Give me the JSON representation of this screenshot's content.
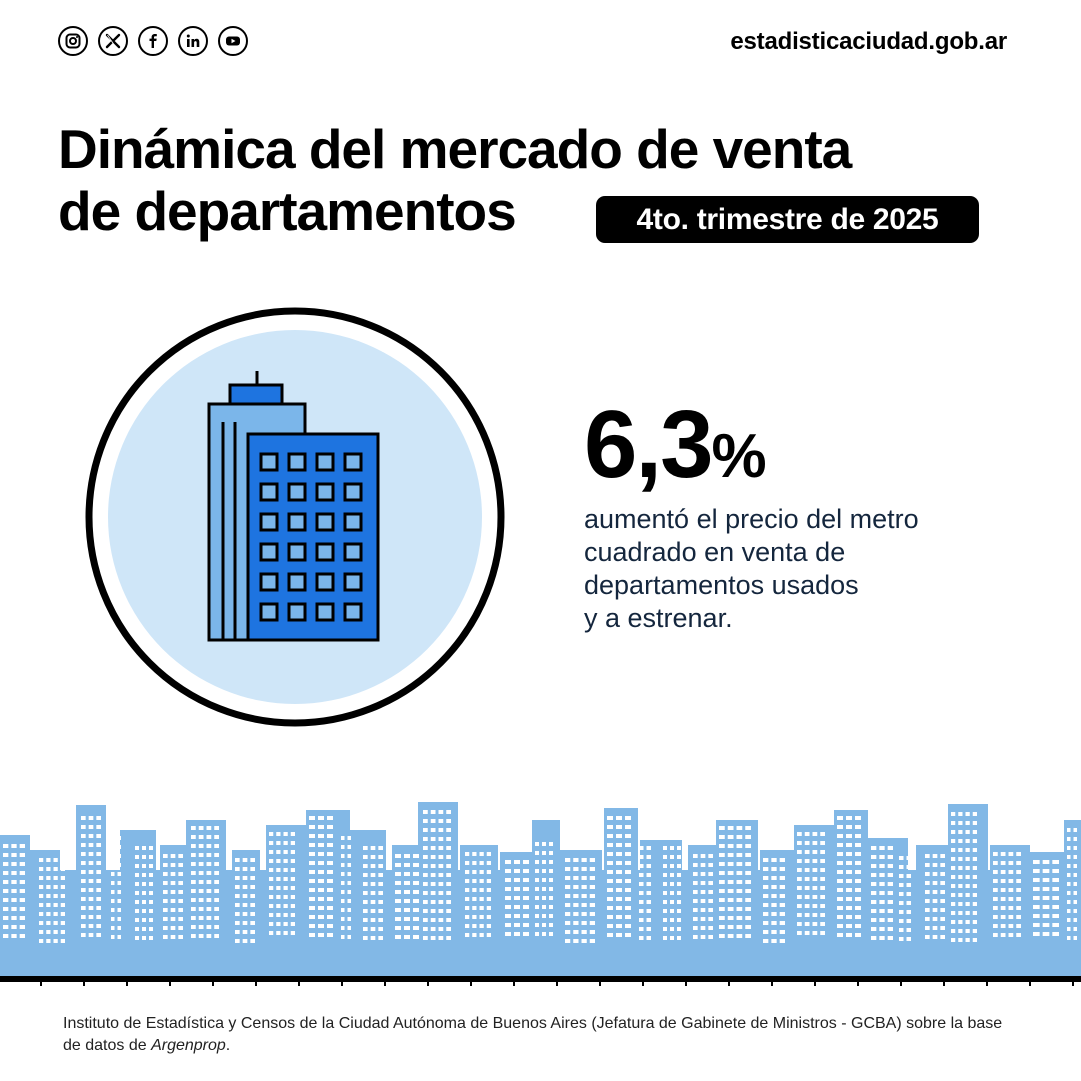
{
  "header": {
    "social_icons": [
      {
        "name": "instagram-icon"
      },
      {
        "name": "x-twitter-icon"
      },
      {
        "name": "facebook-icon"
      },
      {
        "name": "linkedin-icon"
      },
      {
        "name": "youtube-icon"
      }
    ],
    "site_url": "estadisticaciudad.gob.ar"
  },
  "title": {
    "line1": "Dinámica del mercado de venta",
    "line2": "de departamentos"
  },
  "period_badge": "4to. trimestre de 2025",
  "stat": {
    "number": "6,3",
    "unit": "%",
    "description_lines": [
      "aumentó el precio del metro",
      "cuadrado en venta de",
      "departamentos usados",
      "y a estrenar."
    ]
  },
  "illustration": {
    "icon": "office-building-icon",
    "circle_bg_color": "#cfe6f8",
    "building_blue": "#1e74e0",
    "building_light_blue": "#7bb6ea",
    "skyline_color": "#82b8e6"
  },
  "source": {
    "text_before": "Instituto de Estadística y Censos de la Ciudad Autónoma de Buenos Aires (Jefatura de Gabinete de Ministros - GCBA) sobre la base de datos de ",
    "database": "Argenprop",
    "text_after": "."
  }
}
